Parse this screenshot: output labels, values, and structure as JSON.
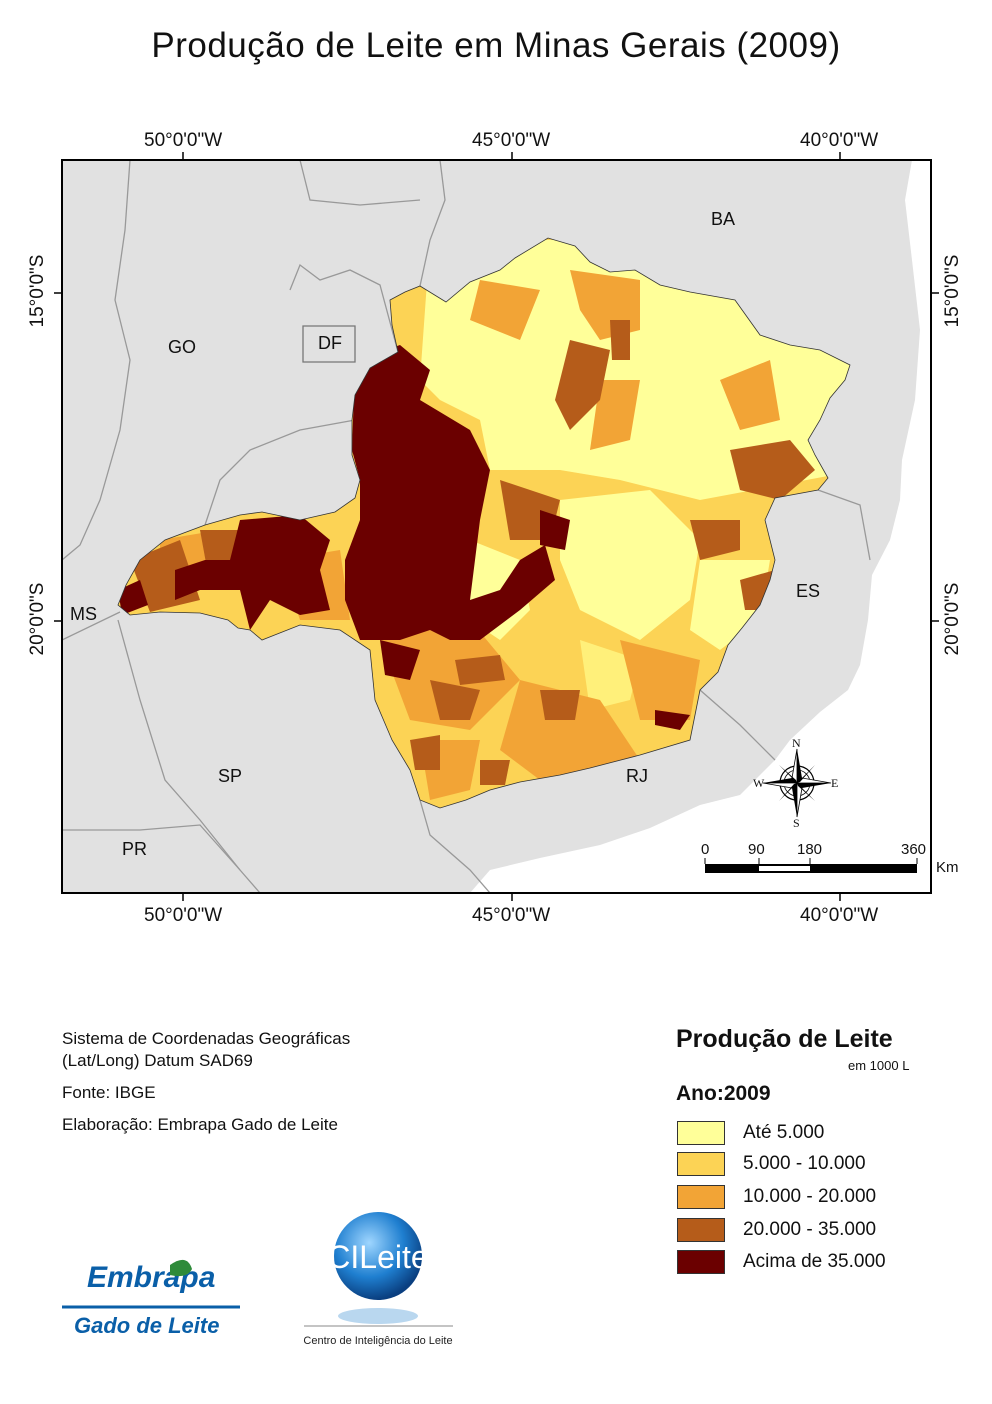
{
  "title": "Produção de Leite em Minas Gerais (2009)",
  "graticule": {
    "top": [
      "50°0'0\"W",
      "45°0'0\"W",
      "40°0'0\"W"
    ],
    "bottom": [
      "50°0'0\"W",
      "45°0'0\"W",
      "40°0'0\"W"
    ],
    "left": [
      "15°0'0\"S",
      "20°0'0\"S"
    ],
    "right": [
      "15°0'0\"S",
      "20°0'0\"S"
    ]
  },
  "states": {
    "ba": "BA",
    "go": "GO",
    "df": "DF",
    "ms": "MS",
    "es": "ES",
    "sp": "SP",
    "rj": "RJ",
    "pr": "PR"
  },
  "compass": {
    "n": "N",
    "s": "S",
    "e": "E",
    "w": "W"
  },
  "scale": {
    "ticks": [
      "0",
      "90",
      "180",
      "360"
    ],
    "unit": "Km"
  },
  "info": {
    "coord_line1": "Sistema de Coordenadas Geográficas",
    "coord_line2": "(Lat/Long) Datum SAD69",
    "source": "Fonte: IBGE",
    "author": "Elaboração: Embrapa Gado de Leite"
  },
  "legend": {
    "title": "Produção de Leite",
    "subtitle": "em 1000 L",
    "year": "Ano:2009",
    "classes": [
      {
        "label": "Até 5.000",
        "color": "#ffff99"
      },
      {
        "label": "5.000 - 10.000",
        "color": "#fcd355"
      },
      {
        "label": "10.000 - 20.000",
        "color": "#f2a436"
      },
      {
        "label": "20.000 - 35.000",
        "color": "#b55c1a"
      },
      {
        "label": "Acima de 35.000",
        "color": "#6b0000"
      }
    ]
  },
  "logos": {
    "embrapa_word": "Embrapa",
    "embrapa_sub": "Gado de Leite",
    "cileite_word": "CILeite",
    "cileite_sub": "Centro de Inteligência do Leite"
  }
}
